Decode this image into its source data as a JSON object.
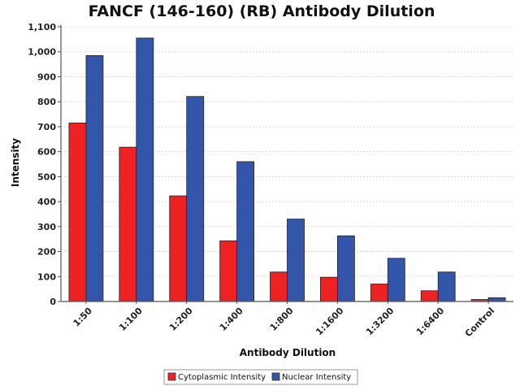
{
  "chart_data": {
    "type": "bar",
    "title": "FANCF (146-160) (RB) Antibody Dilution",
    "xlabel": "Antibody Dilution",
    "ylabel": "Intensity",
    "ylim": [
      0,
      1100
    ],
    "yticks": [
      0,
      100,
      200,
      300,
      400,
      500,
      600,
      700,
      800,
      900,
      1000,
      1100
    ],
    "ytick_labels": [
      "0",
      "100",
      "200",
      "300",
      "400",
      "500",
      "600",
      "700",
      "800",
      "900",
      "1,000",
      "1,100"
    ],
    "categories": [
      "1:50",
      "1:100",
      "1:200",
      "1:400",
      "1:800",
      "1:1600",
      "1:3200",
      "1:6400",
      "Control"
    ],
    "series": [
      {
        "name": "Cytoplasmic Intensity",
        "color": "#ee2222",
        "values": [
          715,
          618,
          423,
          243,
          118,
          97,
          70,
          43,
          8
        ]
      },
      {
        "name": "Nuclear Intensity",
        "color": "#3355aa",
        "values": [
          985,
          1055,
          821,
          560,
          330,
          263,
          173,
          118,
          15
        ]
      }
    ],
    "grid": true,
    "legend": "bottom-center"
  }
}
